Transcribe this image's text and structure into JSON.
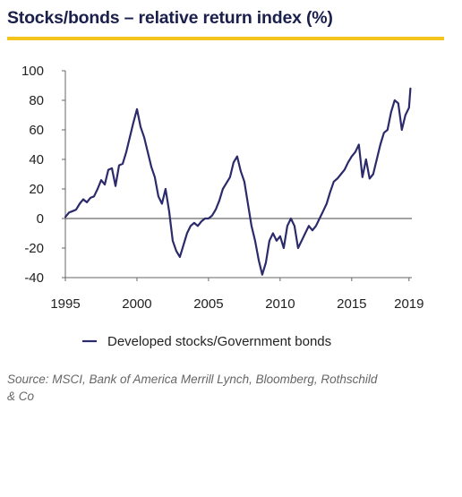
{
  "colors": {
    "accent_rule": "#f5c41c",
    "series": "#2b2a6b",
    "axis": "#666666",
    "title": "#1a1f4b"
  },
  "title": "Stocks/bonds – relative return index (%)",
  "source": "Source: MSCI, Bank of America Merrill Lynch, Bloomberg, Rothschild & Co",
  "chart_data": {
    "type": "line",
    "title": "Stocks/bonds – relative return index (%)",
    "xlabel": "",
    "ylabel": "",
    "xlim": [
      1995,
      2019.2
    ],
    "ylim": [
      -40,
      100
    ],
    "xticks": [
      1995,
      2000,
      2005,
      2010,
      2015,
      2019
    ],
    "yticks": [
      -40,
      -20,
      0,
      20,
      40,
      60,
      80,
      100
    ],
    "grid": false,
    "legend": "bottom",
    "series": [
      {
        "name": "Developed stocks/Government bonds",
        "x": [
          1995.0,
          1995.25,
          1995.5,
          1995.75,
          1996.0,
          1996.25,
          1996.5,
          1996.75,
          1997.0,
          1997.25,
          1997.5,
          1997.75,
          1998.0,
          1998.25,
          1998.5,
          1998.75,
          1999.0,
          1999.25,
          1999.5,
          1999.75,
          2000.0,
          2000.25,
          2000.5,
          2000.75,
          2001.0,
          2001.25,
          2001.5,
          2001.75,
          2002.0,
          2002.25,
          2002.5,
          2002.75,
          2003.0,
          2003.25,
          2003.5,
          2003.75,
          2004.0,
          2004.25,
          2004.5,
          2004.75,
          2005.0,
          2005.25,
          2005.5,
          2005.75,
          2006.0,
          2006.25,
          2006.5,
          2006.75,
          2007.0,
          2007.25,
          2007.5,
          2007.75,
          2008.0,
          2008.25,
          2008.5,
          2008.75,
          2009.0,
          2009.25,
          2009.5,
          2009.75,
          2010.0,
          2010.25,
          2010.5,
          2010.75,
          2011.0,
          2011.25,
          2011.5,
          2011.75,
          2012.0,
          2012.25,
          2012.5,
          2012.75,
          2013.0,
          2013.25,
          2013.5,
          2013.75,
          2014.0,
          2014.25,
          2014.5,
          2014.75,
          2015.0,
          2015.25,
          2015.5,
          2015.75,
          2016.0,
          2016.25,
          2016.5,
          2016.75,
          2017.0,
          2017.25,
          2017.5,
          2017.75,
          2018.0,
          2018.25,
          2018.5,
          2018.75,
          2019.0,
          2019.1
        ],
        "values": [
          1,
          4,
          5,
          6,
          10,
          13,
          11,
          14,
          15,
          20,
          26,
          23,
          33,
          34,
          22,
          36,
          37,
          45,
          55,
          65,
          74,
          62,
          55,
          45,
          35,
          28,
          15,
          10,
          20,
          5,
          -15,
          -22,
          -26,
          -18,
          -10,
          -5,
          -3,
          -5,
          -2,
          0,
          0,
          2,
          6,
          12,
          20,
          24,
          28,
          38,
          42,
          32,
          25,
          10,
          -5,
          -15,
          -28,
          -38,
          -30,
          -15,
          -10,
          -15,
          -12,
          -20,
          -5,
          0,
          -5,
          -20,
          -15,
          -10,
          -5,
          -8,
          -5,
          0,
          5,
          10,
          18,
          25,
          27,
          30,
          33,
          38,
          42,
          45,
          50,
          28,
          40,
          27,
          30,
          40,
          50,
          58,
          60,
          72,
          80,
          78,
          60,
          70,
          75,
          88
        ]
      }
    ]
  }
}
